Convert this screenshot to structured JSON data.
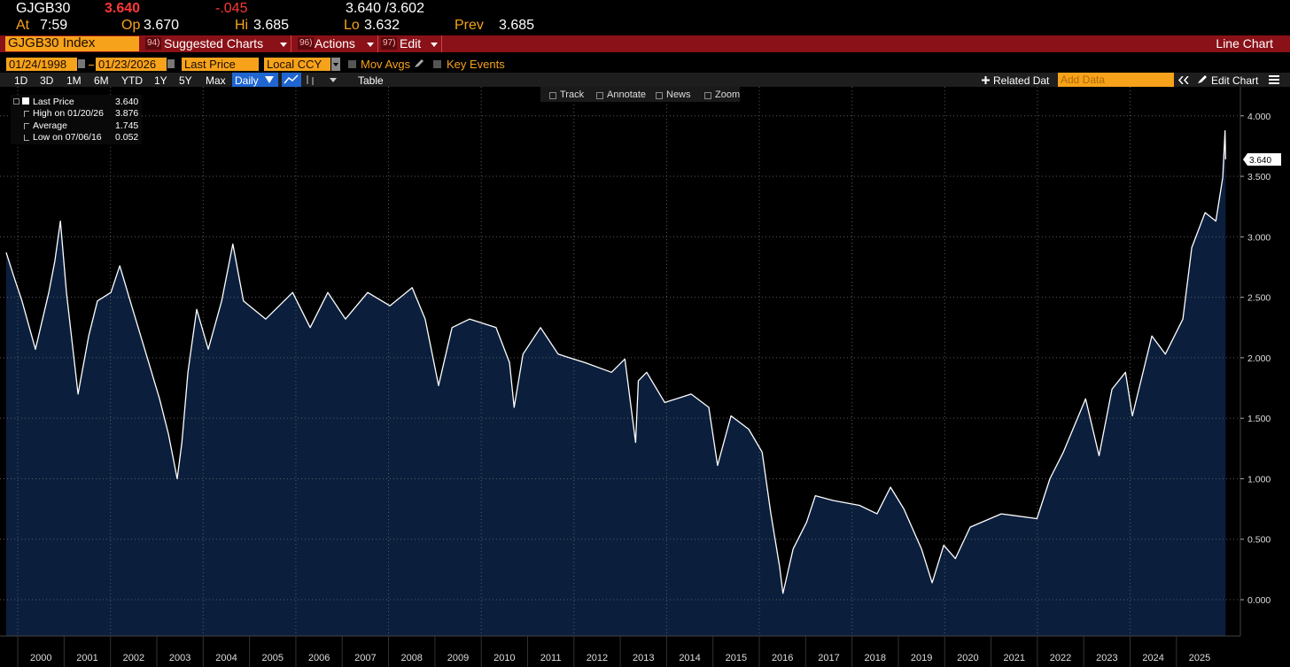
{
  "header": {
    "ticker": "GJGB30",
    "last": "3.640",
    "change": "-.045",
    "bid_ask": "3.640 /3.602",
    "quotes": [
      {
        "label": "At",
        "value": "7:59"
      },
      {
        "label": "Op",
        "value": "3.670"
      },
      {
        "label": "Hi",
        "value": "3.685"
      },
      {
        "label": "Lo",
        "value": "3.632"
      },
      {
        "label": "Prev",
        "value": "3.685"
      }
    ]
  },
  "menu": {
    "security": "GJGB30 Index",
    "items": [
      {
        "num": "94)",
        "label": "Suggested Charts"
      },
      {
        "num": "96)",
        "label": "Actions"
      },
      {
        "num": "97)",
        "label": "Edit"
      }
    ],
    "chart_type": "Line Chart"
  },
  "controls": {
    "start_date": "01/24/1998",
    "end_date": "01/23/2026",
    "field": "Last Price",
    "currency": "Local CCY",
    "mov_avgs": "Mov Avgs",
    "key_events": "Key Events"
  },
  "toolbar": {
    "periods": [
      "1D",
      "3D",
      "1M",
      "6M",
      "YTD",
      "1Y",
      "5Y",
      "Max"
    ],
    "frequency": "Daily",
    "table": "Table",
    "related": "Related Dat",
    "add_data": "Add Data",
    "edit_chart": "Edit Chart"
  },
  "chart_tools": [
    "Track",
    "Annotate",
    "News",
    "Zoom"
  ],
  "legend": {
    "last_value": "3.640",
    "rows": [
      {
        "label": "High on 01/20/26",
        "value": "3.876"
      },
      {
        "label": "Average",
        "value": "1.745"
      },
      {
        "label": "Low on 07/06/16",
        "value": "0.052"
      }
    ]
  },
  "chart_data": {
    "type": "line",
    "x": [
      1999.75,
      1999.9,
      2000.09,
      2000.38,
      2000.67,
      2000.8,
      2000.92,
      2001.05,
      2001.3,
      2001.53,
      2001.72,
      2002.01,
      2002.2,
      2002.48,
      2002.77,
      2003.06,
      2003.25,
      2003.44,
      2003.54,
      2003.67,
      2003.86,
      2004.11,
      2004.4,
      2004.64,
      2004.87,
      2005.35,
      2005.93,
      2006.31,
      2006.69,
      2007.07,
      2007.55,
      2008.03,
      2008.51,
      2008.79,
      2009.08,
      2009.37,
      2009.75,
      2010.32,
      2010.61,
      2010.71,
      2010.9,
      2011.28,
      2011.66,
      2012.24,
      2012.81,
      2013.1,
      2013.33,
      2013.39,
      2013.57,
      2013.96,
      2014.53,
      2014.91,
      2015.1,
      2015.39,
      2015.77,
      2016.06,
      2016.25,
      2016.44,
      2016.51,
      2016.73,
      2017.02,
      2017.21,
      2017.59,
      2018.16,
      2018.54,
      2018.83,
      2019.12,
      2019.5,
      2019.73,
      2019.98,
      2020.23,
      2020.55,
      2021.22,
      2021.99,
      2022.27,
      2022.56,
      2023.04,
      2023.33,
      2023.61,
      2023.9,
      2024.05,
      2024.47,
      2024.76,
      2025.14,
      2025.33,
      2025.62,
      2025.85,
      2026.0,
      2026.05,
      2026.06
    ],
    "series": [
      {
        "name": "Last Price",
        "color": "#ffffff",
        "fill": "#0b1f3d",
        "values": [
          2.87,
          2.69,
          2.47,
          2.07,
          2.54,
          2.8,
          3.13,
          2.54,
          1.7,
          2.18,
          2.47,
          2.54,
          2.76,
          2.4,
          2.03,
          1.66,
          1.37,
          1.0,
          1.3,
          1.88,
          2.4,
          2.07,
          2.47,
          2.94,
          2.47,
          2.32,
          2.54,
          2.25,
          2.54,
          2.32,
          2.54,
          2.43,
          2.58,
          2.32,
          1.77,
          2.25,
          2.32,
          2.25,
          1.96,
          1.59,
          2.03,
          2.25,
          2.03,
          1.96,
          1.88,
          1.99,
          1.3,
          1.81,
          1.88,
          1.63,
          1.7,
          1.59,
          1.11,
          1.52,
          1.41,
          1.22,
          0.71,
          0.27,
          0.052,
          0.42,
          0.64,
          0.86,
          0.82,
          0.78,
          0.71,
          0.93,
          0.75,
          0.42,
          0.14,
          0.45,
          0.34,
          0.6,
          0.71,
          0.67,
          1.0,
          1.22,
          1.66,
          1.19,
          1.74,
          1.88,
          1.52,
          2.18,
          2.03,
          2.32,
          2.91,
          3.2,
          3.13,
          3.49,
          3.876,
          3.64
        ]
      }
    ],
    "last_label": "3.640",
    "xlim": [
      1999.75,
      2026.38
    ],
    "xticks": [
      2000,
      2001,
      2002,
      2003,
      2004,
      2005,
      2006,
      2007,
      2008,
      2009,
      2010,
      2011,
      2012,
      2013,
      2014,
      2015,
      2016,
      2017,
      2018,
      2019,
      2020,
      2021,
      2022,
      2023,
      2024,
      2025
    ],
    "ylim": [
      -0.3,
      4.24
    ],
    "yticks": [
      {
        "value": 0,
        "label": "0.000"
      },
      {
        "value": 0.5,
        "label": "0.500"
      },
      {
        "value": 1,
        "label": "1.000"
      },
      {
        "value": 1.5,
        "label": "1.500"
      },
      {
        "value": 2,
        "label": "2.000"
      },
      {
        "value": 2.5,
        "label": "2.500"
      },
      {
        "value": 3,
        "label": "3.000"
      },
      {
        "value": 3.5,
        "label": "3.500"
      },
      {
        "value": 4,
        "label": "4.000"
      }
    ],
    "grid": true
  }
}
